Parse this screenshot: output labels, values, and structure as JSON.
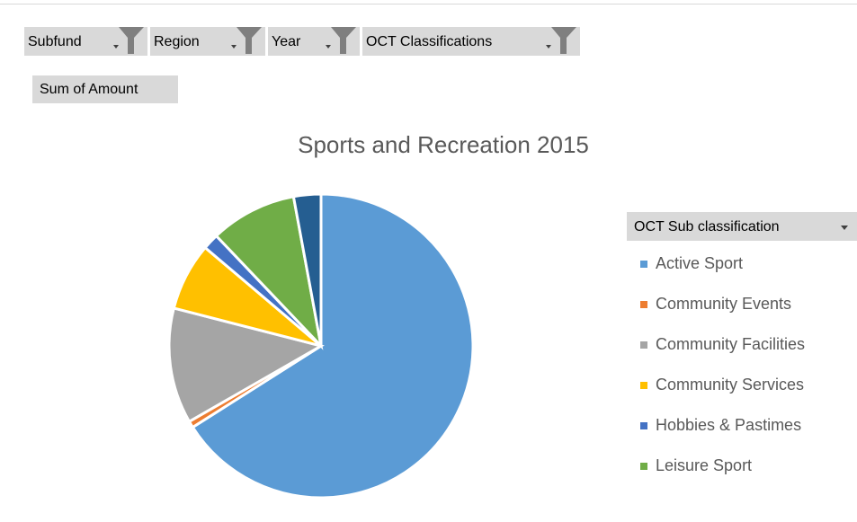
{
  "filters": [
    "Subfund",
    "Region",
    "Year",
    "OCT Classifications"
  ],
  "value_field": "Sum of Amount",
  "chart_data": {
    "type": "pie",
    "title": "Sports and Recreation 2015",
    "legend_title": "OCT Sub classification",
    "categories": [
      "Active Sport",
      "Community Events",
      "Community Facilities",
      "Community Services",
      "Hobbies & Pastimes",
      "Leisure Sport",
      null
    ],
    "values": [
      66,
      0.7,
      12.3,
      7.2,
      1.7,
      9.2,
      2.9
    ],
    "colors": [
      "#5b9bd5",
      "#ed7d31",
      "#a5a5a5",
      "#ffc000",
      "#4472c4",
      "#70ad47",
      "#255e91"
    ]
  }
}
